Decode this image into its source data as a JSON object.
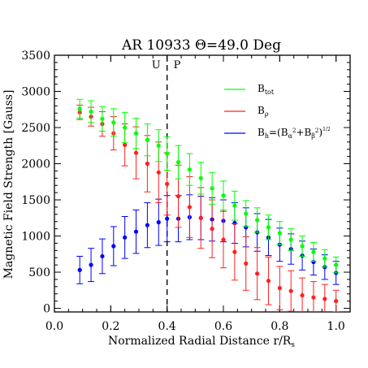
{
  "chart_data": {
    "type": "scatter",
    "title": "AR 10933 Θ=49.0 Deg",
    "xlabel": "Normalized Radial Distance r/R",
    "xlabel_subscript": "s",
    "ylabel": "Magnetic Field Strength [Gauss]",
    "xlim": [
      0.0,
      1.05
    ],
    "ylim": [
      -50,
      3500
    ],
    "xticks": [
      "0.0",
      "0.2",
      "0.4",
      "0.6",
      "0.8",
      "1.0"
    ],
    "xtick_values": [
      0.0,
      0.2,
      0.4,
      0.6,
      0.8,
      1.0
    ],
    "yticks": [
      "0",
      "500",
      "1000",
      "1500",
      "2000",
      "2500",
      "3000",
      "3500"
    ],
    "ytick_values": [
      0,
      500,
      1000,
      1500,
      2000,
      2500,
      3000,
      3500
    ],
    "grid": false,
    "legend_position": "top-right",
    "legend": {
      "btot": "B",
      "btot_sub": "tot",
      "brho": "B",
      "brho_sub": "ρ",
      "bh_lhs": "B",
      "bh_lhs_sub": "h",
      "bh_rhs": "=(B",
      "bh_alpha": "α",
      "bh_sq1": "2",
      "bh_plus": "+B",
      "bh_beta": "β",
      "bh_sq2": "2",
      "bh_close": ")",
      "bh_half": "1/2"
    },
    "divider": {
      "x": 0.4,
      "left_label": "U",
      "right_label": "P"
    },
    "x": [
      0.09,
      0.13,
      0.17,
      0.21,
      0.25,
      0.29,
      0.33,
      0.37,
      0.4,
      0.44,
      0.48,
      0.52,
      0.56,
      0.6,
      0.64,
      0.68,
      0.72,
      0.76,
      0.8,
      0.84,
      0.88,
      0.92,
      0.96,
      1.0
    ],
    "series": [
      {
        "name": "B_tot",
        "color": "#00ff00",
        "values": [
          2760,
          2720,
          2620,
          2570,
          2500,
          2420,
          2330,
          2250,
          2140,
          2020,
          1920,
          1800,
          1660,
          1560,
          1420,
          1310,
          1220,
          1120,
          1040,
          950,
          860,
          780,
          690,
          600
        ],
        "errors": [
          130,
          150,
          170,
          190,
          210,
          210,
          220,
          220,
          230,
          230,
          220,
          220,
          220,
          200,
          200,
          180,
          170,
          170,
          160,
          150,
          140,
          130,
          120,
          110
        ]
      },
      {
        "name": "B_rho",
        "color": "#ff2020",
        "values": [
          2710,
          2650,
          2550,
          2420,
          2260,
          2150,
          2000,
          1880,
          1720,
          1550,
          1400,
          1250,
          1100,
          950,
          780,
          620,
          480,
          380,
          280,
          240,
          180,
          150,
          130,
          100
        ],
        "errors": [
          100,
          130,
          170,
          230,
          290,
          360,
          390,
          420,
          430,
          430,
          420,
          420,
          400,
          390,
          390,
          370,
          360,
          330,
          300,
          280,
          240,
          220,
          200,
          150
        ]
      },
      {
        "name": "B_h",
        "color": "#0000ff",
        "values": [
          530,
          600,
          720,
          860,
          980,
          1060,
          1150,
          1190,
          1240,
          1240,
          1260,
          1250,
          1230,
          1210,
          1180,
          1120,
          1050,
          980,
          880,
          820,
          730,
          640,
          570,
          490
        ],
        "errors": [
          190,
          230,
          240,
          270,
          290,
          300,
          310,
          320,
          320,
          320,
          310,
          300,
          300,
          290,
          280,
          270,
          260,
          250,
          230,
          210,
          200,
          180,
          170,
          160
        ]
      }
    ]
  }
}
